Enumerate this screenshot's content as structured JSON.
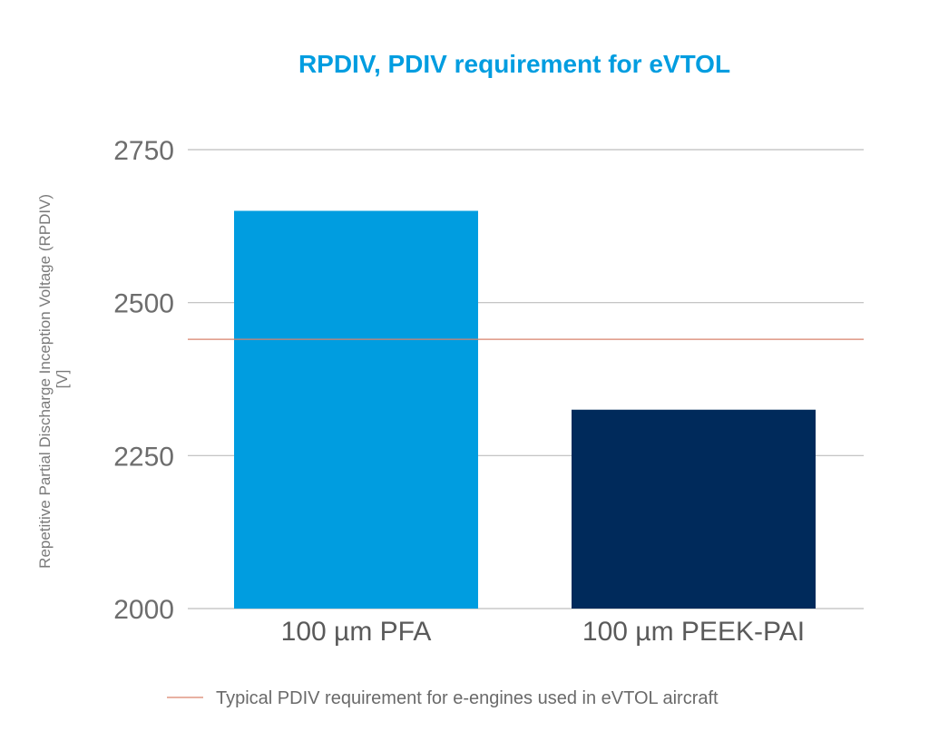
{
  "chart_data": {
    "type": "bar",
    "title": "RPDIV, PDIV requirement for eVTOL",
    "ylabel_lines": [
      "Repetitive Partial Discharge Inception Voltage (RPDIV)",
      "[V]"
    ],
    "xlabel": "",
    "categories": [
      "100 µm PFA",
      "100 µm PEEK-PAI"
    ],
    "values": [
      2650,
      2325
    ],
    "bar_colors": [
      "#009de0",
      "#002a5b"
    ],
    "ylim": [
      2000,
      2750
    ],
    "yticks": [
      2000,
      2250,
      2500,
      2750
    ],
    "ytick_labels": [
      "2000",
      "2250",
      "2500",
      "2750"
    ],
    "grid": true,
    "reference_line": {
      "value": 2440,
      "color": "#d9826b",
      "label": "Typical PDIV requirement for e-engines used in eVTOL aircraft"
    },
    "legend_position": "bottom",
    "title_color": "#009de0",
    "grid_color": "#bdbdbd"
  }
}
